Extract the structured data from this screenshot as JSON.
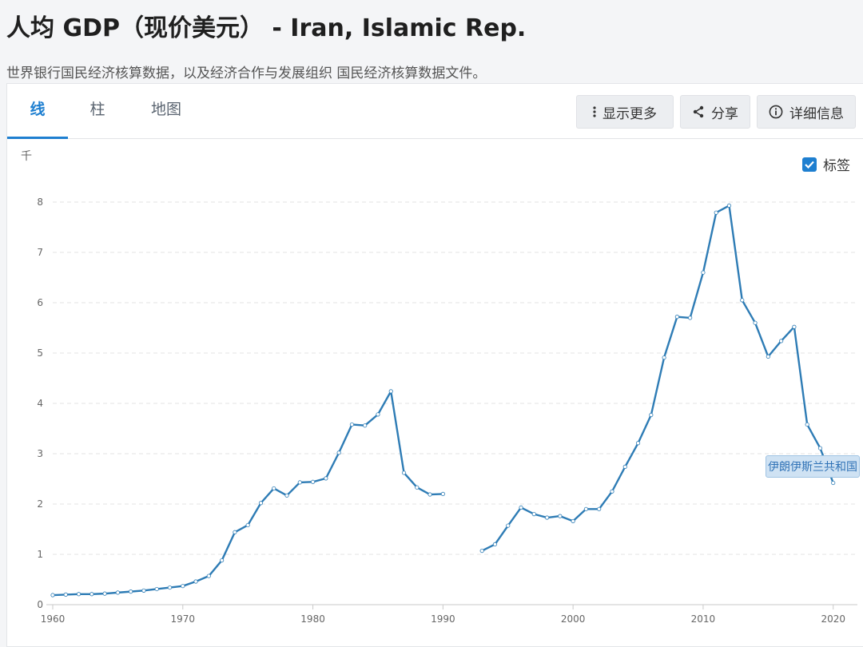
{
  "header": {
    "title": "人均 GDP（现价美元） - Iran, Islamic Rep.",
    "source": "世界银行国民经济核算数据，以及经济合作与发展组织 国民经济核算数据文件。"
  },
  "tabs": [
    {
      "label": "线",
      "active": true
    },
    {
      "label": "柱",
      "active": false
    },
    {
      "label": "地图",
      "active": false
    }
  ],
  "toolbar": {
    "more_label": "显示更多",
    "share_label": "分享",
    "details_label": "详细信息"
  },
  "chart_options": {
    "unit_label": "千",
    "labels_toggle": "标签",
    "labels_checked": true
  },
  "colors": {
    "accent": "#1e7fd0",
    "line": "#2e7cb5",
    "grid": "#e3e3e3",
    "tag_bg": "#cfe2f3"
  },
  "chart_data": {
    "type": "line",
    "ylim": [
      0,
      8
    ],
    "yticks": [
      "0",
      "1",
      "2",
      "3",
      "4",
      "5",
      "6",
      "7",
      "8"
    ],
    "xlim": [
      1960,
      2021
    ],
    "xticks": [
      "1960",
      "1970",
      "1980",
      "1990",
      "2000",
      "2010",
      "2020"
    ],
    "grid": true,
    "series": [
      {
        "name": "伊朗伊斯兰共和国",
        "x": [
          1960,
          1961,
          1962,
          1963,
          1964,
          1965,
          1966,
          1967,
          1968,
          1969,
          1970,
          1971,
          1972,
          1973,
          1974,
          1975,
          1976,
          1977,
          1978,
          1979,
          1980,
          1981,
          1982,
          1983,
          1984,
          1985,
          1986,
          1987,
          1988,
          1989,
          1990,
          1993,
          1994,
          1995,
          1996,
          1997,
          1998,
          1999,
          2000,
          2001,
          2002,
          2003,
          2004,
          2005,
          2006,
          2007,
          2008,
          2009,
          2010,
          2011,
          2012,
          2013,
          2014,
          2015,
          2016,
          2017,
          2018,
          2019,
          2020
        ],
        "values": [
          0.19,
          0.2,
          0.21,
          0.21,
          0.22,
          0.24,
          0.26,
          0.28,
          0.31,
          0.34,
          0.37,
          0.46,
          0.57,
          0.88,
          1.44,
          1.58,
          2.02,
          2.31,
          2.17,
          2.43,
          2.44,
          2.51,
          3.02,
          3.58,
          3.56,
          3.78,
          4.24,
          2.62,
          2.33,
          2.19,
          2.2,
          1.07,
          1.2,
          1.57,
          1.93,
          1.8,
          1.73,
          1.76,
          1.66,
          1.9,
          1.9,
          2.25,
          2.74,
          3.21,
          3.77,
          4.91,
          5.72,
          5.7,
          6.6,
          7.79,
          7.93,
          6.05,
          5.6,
          4.93,
          5.24,
          5.52,
          3.58,
          3.11,
          2.42
        ]
      }
    ]
  }
}
